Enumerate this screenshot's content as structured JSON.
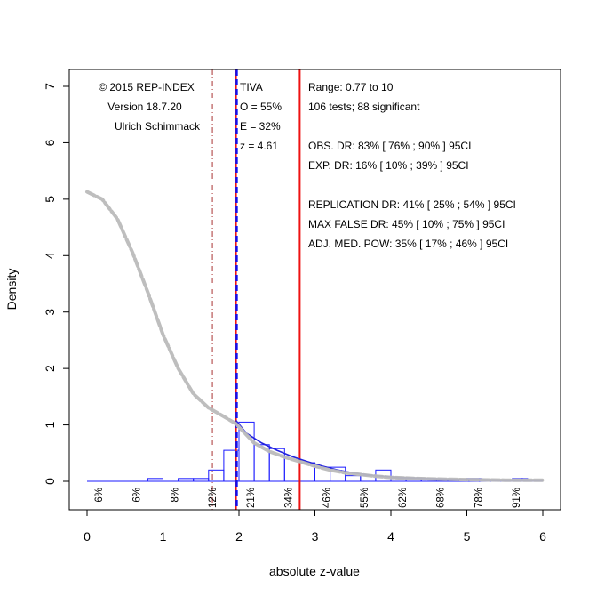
{
  "chart_data": {
    "type": "histogram",
    "xlabel": "absolute z-value",
    "ylabel": "Density",
    "xlim": [
      0,
      6
    ],
    "ylim": [
      0,
      7
    ],
    "x_ticks": [
      "0",
      "1",
      "2",
      "3",
      "4",
      "5",
      "6"
    ],
    "y_ticks": [
      "0",
      "1",
      "2",
      "3",
      "4",
      "5",
      "6",
      "7"
    ],
    "bin_width": 0.2,
    "bins": [
      {
        "x0": 0.0,
        "x1": 0.2,
        "density": 0.0
      },
      {
        "x0": 0.2,
        "x1": 0.4,
        "density": 0.0
      },
      {
        "x0": 0.4,
        "x1": 0.6,
        "density": 0.0
      },
      {
        "x0": 0.6,
        "x1": 0.8,
        "density": 0.0
      },
      {
        "x0": 0.8,
        "x1": 1.0,
        "density": 0.05
      },
      {
        "x0": 1.0,
        "x1": 1.2,
        "density": 0.0
      },
      {
        "x0": 1.2,
        "x1": 1.4,
        "density": 0.05
      },
      {
        "x0": 1.4,
        "x1": 1.6,
        "density": 0.05
      },
      {
        "x0": 1.6,
        "x1": 1.8,
        "density": 0.2
      },
      {
        "x0": 1.8,
        "x1": 2.0,
        "density": 0.55
      },
      {
        "x0": 2.0,
        "x1": 2.2,
        "density": 1.05
      },
      {
        "x0": 2.2,
        "x1": 2.4,
        "density": 0.65
      },
      {
        "x0": 2.4,
        "x1": 2.6,
        "density": 0.58
      },
      {
        "x0": 2.6,
        "x1": 2.8,
        "density": 0.45
      },
      {
        "x0": 2.8,
        "x1": 3.0,
        "density": 0.33
      },
      {
        "x0": 3.0,
        "x1": 3.2,
        "density": 0.25
      },
      {
        "x0": 3.2,
        "x1": 3.4,
        "density": 0.25
      },
      {
        "x0": 3.4,
        "x1": 3.6,
        "density": 0.1
      },
      {
        "x0": 3.6,
        "x1": 3.8,
        "density": 0.1
      },
      {
        "x0": 3.8,
        "x1": 4.0,
        "density": 0.2
      },
      {
        "x0": 4.0,
        "x1": 4.2,
        "density": 0.05
      },
      {
        "x0": 4.2,
        "x1": 4.4,
        "density": 0.05
      },
      {
        "x0": 4.4,
        "x1": 4.6,
        "density": 0.05
      },
      {
        "x0": 4.6,
        "x1": 4.8,
        "density": 0.0
      },
      {
        "x0": 4.8,
        "x1": 5.0,
        "density": 0.0
      },
      {
        "x0": 5.0,
        "x1": 5.2,
        "density": 0.05
      },
      {
        "x0": 5.2,
        "x1": 5.4,
        "density": 0.0
      },
      {
        "x0": 5.4,
        "x1": 5.6,
        "density": 0.0
      },
      {
        "x0": 5.6,
        "x1": 5.8,
        "density": 0.05
      },
      {
        "x0": 5.8,
        "x1": 6.0,
        "density": 0.0
      }
    ],
    "percent_labels": [
      {
        "x": 0.15,
        "text": "6%"
      },
      {
        "x": 0.65,
        "text": "6%"
      },
      {
        "x": 1.15,
        "text": "8%"
      },
      {
        "x": 1.65,
        "text": "12%"
      },
      {
        "x": 2.15,
        "text": "21%"
      },
      {
        "x": 2.65,
        "text": "34%"
      },
      {
        "x": 3.15,
        "text": "46%"
      },
      {
        "x": 3.65,
        "text": "55%"
      },
      {
        "x": 4.15,
        "text": "62%"
      },
      {
        "x": 4.65,
        "text": "68%"
      },
      {
        "x": 5.15,
        "text": "78%"
      },
      {
        "x": 5.65,
        "text": "91%"
      }
    ],
    "gray_curve": {
      "x": [
        0.0,
        0.2,
        0.4,
        0.6,
        0.8,
        1.0,
        1.2,
        1.4,
        1.6,
        1.8,
        1.96,
        2.2,
        2.4,
        2.6,
        2.8,
        3.0,
        3.2,
        3.4,
        3.6,
        3.8,
        4.0,
        4.3,
        4.6,
        5.0,
        5.5,
        6.0
      ],
      "y": [
        5.13,
        5.0,
        4.65,
        4.05,
        3.35,
        2.6,
        2.0,
        1.55,
        1.3,
        1.15,
        1.02,
        0.68,
        0.53,
        0.43,
        0.35,
        0.27,
        0.2,
        0.15,
        0.12,
        0.09,
        0.07,
        0.05,
        0.04,
        0.03,
        0.02,
        0.02
      ]
    },
    "blue_curve": {
      "x": [
        1.96,
        2.1,
        2.3,
        2.5,
        2.7,
        2.9,
        3.1,
        3.3,
        3.5,
        3.8,
        4.1,
        4.5,
        5.0,
        5.5,
        6.0
      ],
      "y": [
        1.08,
        0.85,
        0.68,
        0.55,
        0.44,
        0.35,
        0.27,
        0.2,
        0.15,
        0.1,
        0.07,
        0.05,
        0.03,
        0.02,
        0.02
      ]
    },
    "reference_lines": [
      {
        "name": "z-1.65",
        "x": 1.65,
        "color": "#aa3333",
        "style": "dashdot"
      },
      {
        "name": "z-1.96-red",
        "x": 1.96,
        "color": "#ee1111",
        "style": "solid"
      },
      {
        "name": "z-1.96-blue",
        "x": 1.97,
        "color": "#1111ee",
        "style": "dashed"
      },
      {
        "name": "z-2.8",
        "x": 2.8,
        "color": "#ee1111",
        "style": "solid"
      }
    ],
    "colors": {
      "histogram": "#1a1aff",
      "gray_curve": "#bbbbbb",
      "blue_curve": "#2222dd"
    }
  },
  "info_left": [
    "© 2015 REP-INDEX",
    "Version 18.7.20",
    "Ulrich Schimmack"
  ],
  "info_mid": [
    "TIVA",
    "O = 55%",
    "E = 32%",
    "z = 4.61"
  ],
  "info_right": [
    "Range: 0.77 to 10",
    "106 tests; 88 significant",
    "",
    "OBS. DR: 83% [ 76% ; 90% ] 95CI",
    "EXP. DR: 16% [ 10% ; 39% ] 95CI",
    "",
    "REPLICATION DR: 41% [ 25% ; 54% ] 95CI",
    "MAX FALSE DR: 45% [ 10% ; 75% ] 95CI",
    "ADJ. MED. POW: 35% [ 17% ; 46% ] 95CI"
  ]
}
